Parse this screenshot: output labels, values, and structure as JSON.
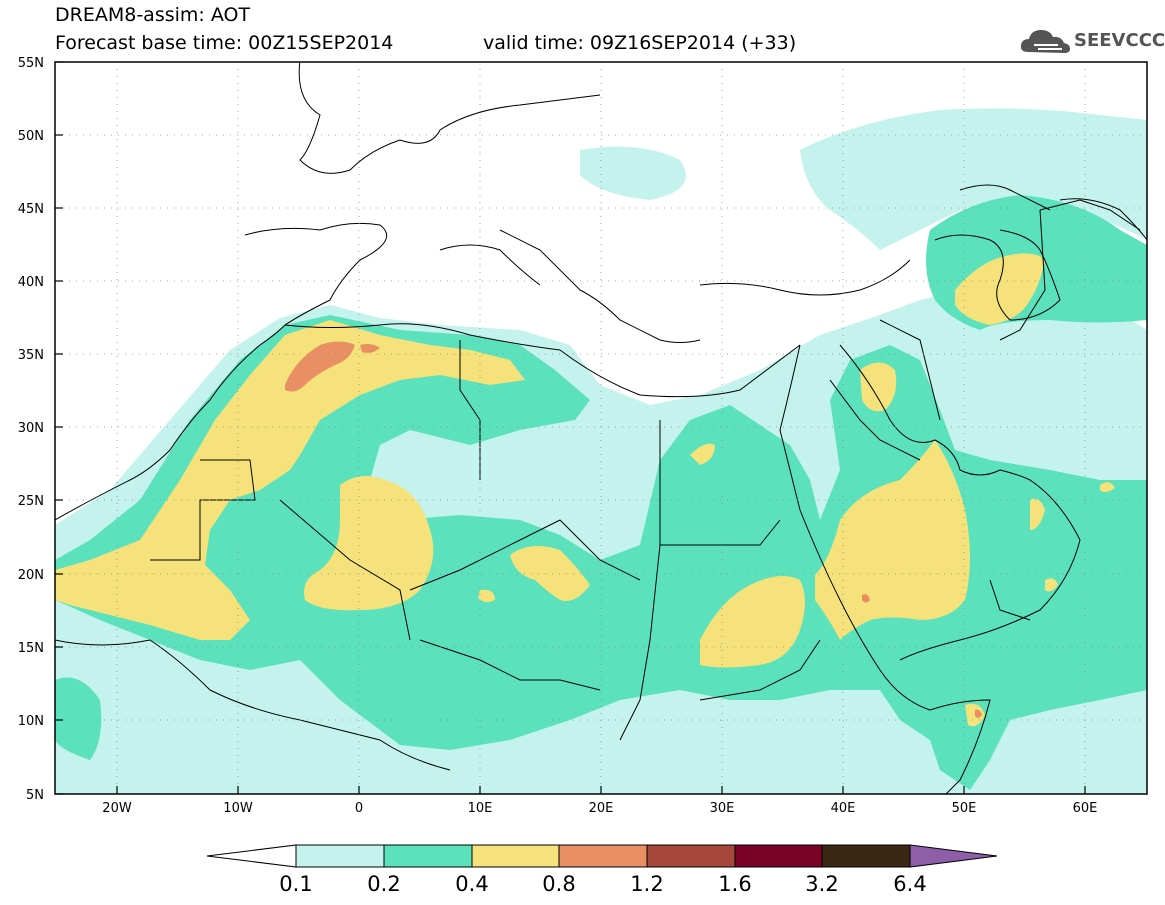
{
  "header": {
    "title": "DREAM8-assim: AOT",
    "base_time": "Forecast base time: 00Z15SEP2014",
    "valid_time": "valid time: 09Z16SEP2014 (+33)",
    "logo_text": "SEEVCCC"
  },
  "map": {
    "lat_labels": [
      "55N",
      "50N",
      "45N",
      "40N",
      "35N",
      "30N",
      "25N",
      "20N",
      "15N",
      "10N",
      "5N"
    ],
    "lon_labels": [
      "20W",
      "10W",
      "0",
      "10E",
      "20E",
      "30E",
      "40E",
      "50E",
      "60E"
    ],
    "field": "Aerosol optical thickness (dust)"
  },
  "colorbar": {
    "labels": [
      "0.1",
      "0.2",
      "0.4",
      "0.8",
      "1.2",
      "1.6",
      "3.2",
      "6.4"
    ],
    "colors": [
      "#c4f2ec",
      "#5ce1bd",
      "#f5e27a",
      "#e88f64",
      "#a5473a",
      "#7a0226",
      "#3a2814",
      "#8e5ea8"
    ]
  }
}
